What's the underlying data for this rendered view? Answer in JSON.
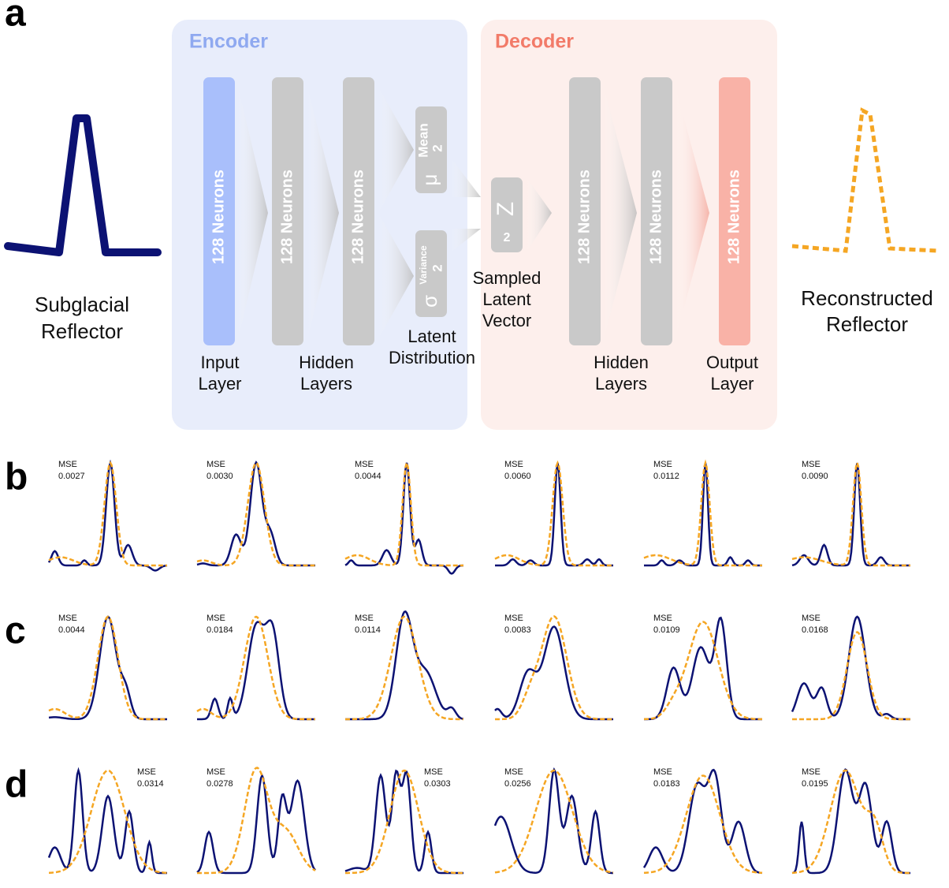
{
  "panel_a": {
    "label": "a",
    "input": {
      "label": [
        "Subglacial",
        "Reflector"
      ]
    },
    "output": {
      "label": [
        "Reconstructed",
        "Reflector"
      ]
    },
    "encoder": {
      "title": "Encoder",
      "layers": [
        "128 Neurons",
        "128 Neurons",
        "128 Neurons"
      ],
      "input_label": [
        "Input",
        "Layer"
      ],
      "hidden_label": [
        "Hidden",
        "Layers"
      ],
      "mean": {
        "name": "Mean",
        "dim": "2",
        "symbol": "μ"
      },
      "variance": {
        "name": "Variance",
        "dim": "2",
        "symbol": "σ"
      },
      "latent_label": [
        "Latent",
        "Distribution"
      ]
    },
    "decoder": {
      "title": "Decoder",
      "layers": [
        "128 Neurons",
        "128 Neurons",
        "128 Neurons"
      ],
      "sample": {
        "symbol": "Z",
        "dim": "2",
        "label": [
          "Sampled",
          "Latent",
          "Vector"
        ]
      },
      "hidden_label": [
        "Hidden",
        "Layers"
      ],
      "output_label": [
        "Output",
        "Layer"
      ]
    }
  },
  "panels": [
    {
      "label": "b",
      "items": [
        {
          "metric": "MSE",
          "value": "0.0027"
        },
        {
          "metric": "MSE",
          "value": "0.0030"
        },
        {
          "metric": "MSE",
          "value": "0.0044"
        },
        {
          "metric": "MSE",
          "value": "0.0060"
        },
        {
          "metric": "MSE",
          "value": "0.0112"
        },
        {
          "metric": "MSE",
          "value": "0.0090"
        }
      ]
    },
    {
      "label": "c",
      "items": [
        {
          "metric": "MSE",
          "value": "0.0044"
        },
        {
          "metric": "MSE",
          "value": "0.0184"
        },
        {
          "metric": "MSE",
          "value": "0.0114"
        },
        {
          "metric": "MSE",
          "value": "0.0083"
        },
        {
          "metric": "MSE",
          "value": "0.0109"
        },
        {
          "metric": "MSE",
          "value": "0.0168"
        }
      ]
    },
    {
      "label": "d",
      "items": [
        {
          "metric": "MSE",
          "value": "0.0314"
        },
        {
          "metric": "MSE",
          "value": "0.0278"
        },
        {
          "metric": "MSE",
          "value": "0.0303"
        },
        {
          "metric": "MSE",
          "value": "0.0256"
        },
        {
          "metric": "MSE",
          "value": "0.0183"
        },
        {
          "metric": "MSE",
          "value": "0.0195"
        }
      ]
    }
  ]
}
